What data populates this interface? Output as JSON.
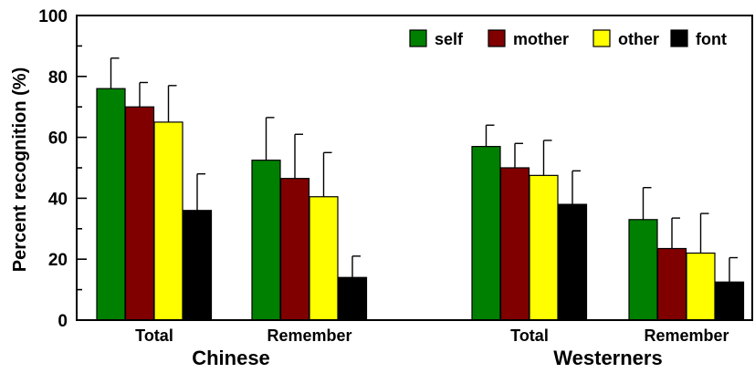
{
  "chart_data": {
    "type": "bar",
    "ylabel": "Percent recognition (%)",
    "ylim": [
      0,
      100
    ],
    "yticks": [
      0,
      20,
      40,
      60,
      80,
      100
    ],
    "legend_position": "top-right",
    "grid": false,
    "groups": [
      {
        "label": "Chinese",
        "categories": [
          {
            "label": "Total",
            "values": [
              76,
              70,
              65,
              36
            ],
            "errors": [
              10,
              8,
              12,
              12
            ]
          },
          {
            "label": "Remember",
            "values": [
              52.5,
              46.5,
              40.5,
              14
            ],
            "errors": [
              14,
              14.5,
              14.5,
              7
            ]
          }
        ]
      },
      {
        "label": "Westerners",
        "categories": [
          {
            "label": "Total",
            "values": [
              57,
              50,
              47.5,
              38
            ],
            "errors": [
              7,
              8,
              11.5,
              11
            ]
          },
          {
            "label": "Remember",
            "values": [
              33,
              23.5,
              22,
              12.5
            ],
            "errors": [
              10.5,
              10,
              13,
              8
            ]
          }
        ]
      }
    ],
    "series": [
      {
        "name": "self",
        "color": "#008000"
      },
      {
        "name": "mother",
        "color": "#800000"
      },
      {
        "name": "other",
        "color": "#ffff00"
      },
      {
        "name": "font",
        "color": "#000000"
      }
    ]
  }
}
